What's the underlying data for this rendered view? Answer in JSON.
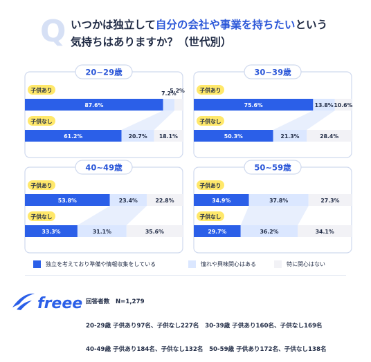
{
  "header": {
    "q_letter": "Q",
    "title_pre": "いつかは独立して",
    "title_highlight": "自分の会社や事業を持ちたい",
    "title_post": "という",
    "subtitle": "気持ちはありますか？（世代別）"
  },
  "colors": {
    "dark_blue": "#2b5fe8",
    "light_blue": "#dbe7ff",
    "pale_gray": "#f2f2f6",
    "pill_bg": "#ffe86a",
    "frame_border": "#cfd9ee",
    "badge_blue": "#2b57d8",
    "connector": "#e8effd"
  },
  "chart_data": [
    {
      "type": "bar",
      "title": "20~29歳",
      "categories": [
        "子供あり",
        "子供なし"
      ],
      "series": [
        {
          "name": "独立を考えており準備や情報収集をしている",
          "values": [
            87.6,
            61.2
          ],
          "labels": [
            "87.6%",
            "61.2%"
          ]
        },
        {
          "name": "憧れや興味関心はある",
          "values": [
            7.2,
            20.7
          ],
          "labels": [
            "7.2%",
            "20.7%"
          ]
        },
        {
          "name": "特に関心はない",
          "values": [
            5.2,
            18.1
          ],
          "labels": [
            "5.2%",
            "18.1%"
          ]
        }
      ]
    },
    {
      "type": "bar",
      "title": "30~39歳",
      "categories": [
        "子供あり",
        "子供なし"
      ],
      "series": [
        {
          "name": "独立を考えており準備や情報収集をしている",
          "values": [
            75.6,
            50.3
          ],
          "labels": [
            "75.6%",
            "50.3%"
          ]
        },
        {
          "name": "憧れや興味関心はある",
          "values": [
            13.8,
            21.3
          ],
          "labels": [
            "13.8%",
            "21.3%"
          ]
        },
        {
          "name": "特に関心はない",
          "values": [
            10.6,
            28.4
          ],
          "labels": [
            "10.6%",
            "28.4%"
          ]
        }
      ]
    },
    {
      "type": "bar",
      "title": "40~49歳",
      "categories": [
        "子供あり",
        "子供なし"
      ],
      "series": [
        {
          "name": "独立を考えており準備や情報収集をしている",
          "values": [
            53.8,
            33.3
          ],
          "labels": [
            "53.8%",
            "33.3%"
          ]
        },
        {
          "name": "憧れや興味関心はある",
          "values": [
            23.4,
            31.1
          ],
          "labels": [
            "23.4%",
            "31.1%"
          ]
        },
        {
          "name": "特に関心はない",
          "values": [
            22.8,
            35.6
          ],
          "labels": [
            "22.8%",
            "35.6%"
          ]
        }
      ]
    },
    {
      "type": "bar",
      "title": "50~59歳",
      "categories": [
        "子供あり",
        "子供なし"
      ],
      "series": [
        {
          "name": "独立を考えており準備や情報収集をしている",
          "values": [
            34.9,
            29.7
          ],
          "labels": [
            "34.9%",
            "29.7%"
          ]
        },
        {
          "name": "憧れや興味関心はある",
          "values": [
            37.8,
            36.2
          ],
          "labels": [
            "37.8%",
            "36.2%"
          ]
        },
        {
          "name": "特に関心はない",
          "values": [
            27.3,
            34.1
          ],
          "labels": [
            "27.3%",
            "34.1%"
          ]
        }
      ]
    }
  ],
  "legend": {
    "items": [
      "独立を考えており準備や情報収集をしている",
      "憧れや興味関心はある",
      "特に関心はない"
    ]
  },
  "footer": {
    "logo_text": "freee",
    "lines": [
      "回答者数　N=1,279",
      "20-29歳 子供あり97名、子供なし227名　30-39歳 子供あり160名、子供なし169名",
      "40-49歳 子供あり184名、子供なし132名　50-59歳 子供あり172名、子供なし138名"
    ]
  }
}
